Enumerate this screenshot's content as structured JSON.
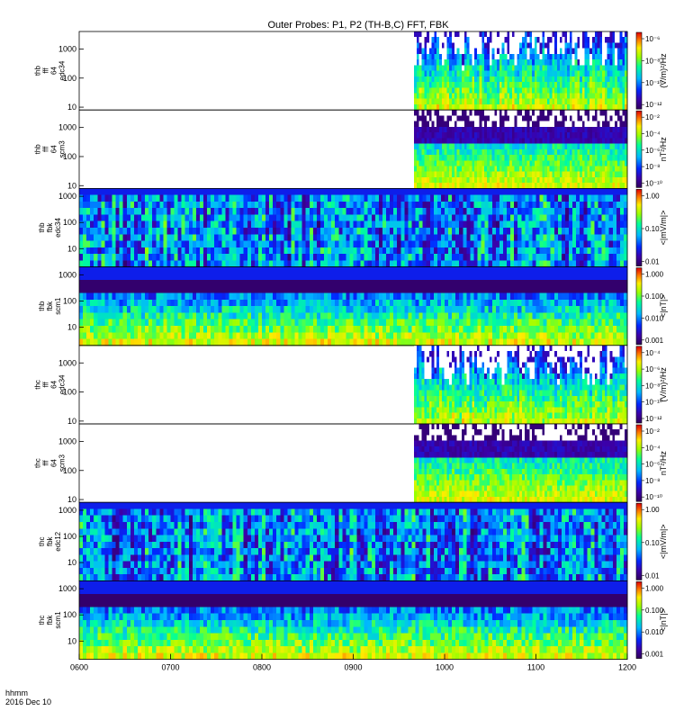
{
  "title": "Outer Probes: P1, P2 (TH-B,C) FFT, FBK",
  "footer": {
    "time_label": "hhmm",
    "date_label": "2016 Dec 10"
  },
  "chart_data": {
    "type": "heatmap",
    "x_ticks": [
      "0600",
      "0700",
      "0800",
      "0900",
      "1000",
      "1100",
      "1200"
    ],
    "x_range": [
      "0600",
      "1200"
    ],
    "x_data_start": "0940",
    "panels": [
      {
        "id": "thb-fff-e34",
        "ylabel_lines": [
          "thb",
          "fff",
          "64",
          "edc34"
        ],
        "yticks": [
          "1000",
          "100",
          "10"
        ],
        "ylim": [
          8,
          4000
        ],
        "colorbar_ticks": [
          "10⁻⁶",
          "10⁻⁸",
          "10⁻¹⁰",
          "10⁻¹²"
        ],
        "colorbar_label": "(V/m)²/Hz",
        "data_start": "0940"
      },
      {
        "id": "thb-fff-scm3",
        "ylabel_lines": [
          "thb",
          "fff",
          "64",
          "scm3"
        ],
        "yticks": [
          "1000",
          "100",
          "10"
        ],
        "ylim": [
          8,
          4000
        ],
        "colorbar_ticks": [
          "10⁻²",
          "10⁻⁴",
          "10⁻⁶",
          "10⁻⁸",
          "10⁻¹⁰"
        ],
        "colorbar_label": "nT²/Hz",
        "data_start": "0940"
      },
      {
        "id": "thb-fbk-e34",
        "ylabel_lines": [
          "thb",
          "fbk",
          "edc34"
        ],
        "yticks": [
          "1000",
          "100",
          "10"
        ],
        "ylim": [
          2,
          2000
        ],
        "colorbar_ticks": [
          "1.00",
          "0.10",
          "0.01"
        ],
        "colorbar_label": "<|mV/m|>",
        "data_start": "0600"
      },
      {
        "id": "thb-fbk-scm1",
        "ylabel_lines": [
          "thb",
          "fbk",
          "scm1"
        ],
        "yticks": [
          "1000",
          "100",
          "10"
        ],
        "ylim": [
          2,
          2000
        ],
        "colorbar_ticks": [
          "1.000",
          "0.100",
          "0.010",
          "0.001"
        ],
        "colorbar_label": "<|nT|>",
        "data_start": "0600"
      },
      {
        "id": "thc-fff-e34",
        "ylabel_lines": [
          "thc",
          "fff",
          "64",
          "edc34"
        ],
        "yticks": [
          "1000",
          "100",
          "10"
        ],
        "ylim": [
          8,
          4000
        ],
        "colorbar_ticks": [
          "10⁻⁴",
          "10⁻⁶",
          "10⁻⁸",
          "10⁻¹⁰",
          "10⁻¹²"
        ],
        "colorbar_label": "(V/m)²/Hz",
        "data_start": "0940"
      },
      {
        "id": "thc-fff-scm3",
        "ylabel_lines": [
          "thc",
          "fff",
          "64",
          "scm3"
        ],
        "yticks": [
          "1000",
          "100",
          "10"
        ],
        "ylim": [
          8,
          4000
        ],
        "colorbar_ticks": [
          "10⁻²",
          "10⁻⁴",
          "10⁻⁶",
          "10⁻⁸",
          "10⁻¹⁰"
        ],
        "colorbar_label": "nT²/Hz",
        "data_start": "0940"
      },
      {
        "id": "thc-fbk-e12",
        "ylabel_lines": [
          "thc",
          "fbk",
          "edc12"
        ],
        "yticks": [
          "1000",
          "100",
          "10"
        ],
        "ylim": [
          2,
          2000
        ],
        "colorbar_ticks": [
          "1.00",
          "0.10",
          "0.01"
        ],
        "colorbar_label": "<|mV/m|>",
        "data_start": "0600"
      },
      {
        "id": "thc-fbk-scm1",
        "ylabel_lines": [
          "thc",
          "fbk",
          "scm1"
        ],
        "yticks": [
          "1000",
          "100",
          "10"
        ],
        "ylim": [
          2,
          2000
        ],
        "colorbar_ticks": [
          "1.000",
          "0.100",
          "0.010",
          "0.001"
        ],
        "colorbar_label": "<|nT|>",
        "data_start": "0600"
      }
    ]
  }
}
